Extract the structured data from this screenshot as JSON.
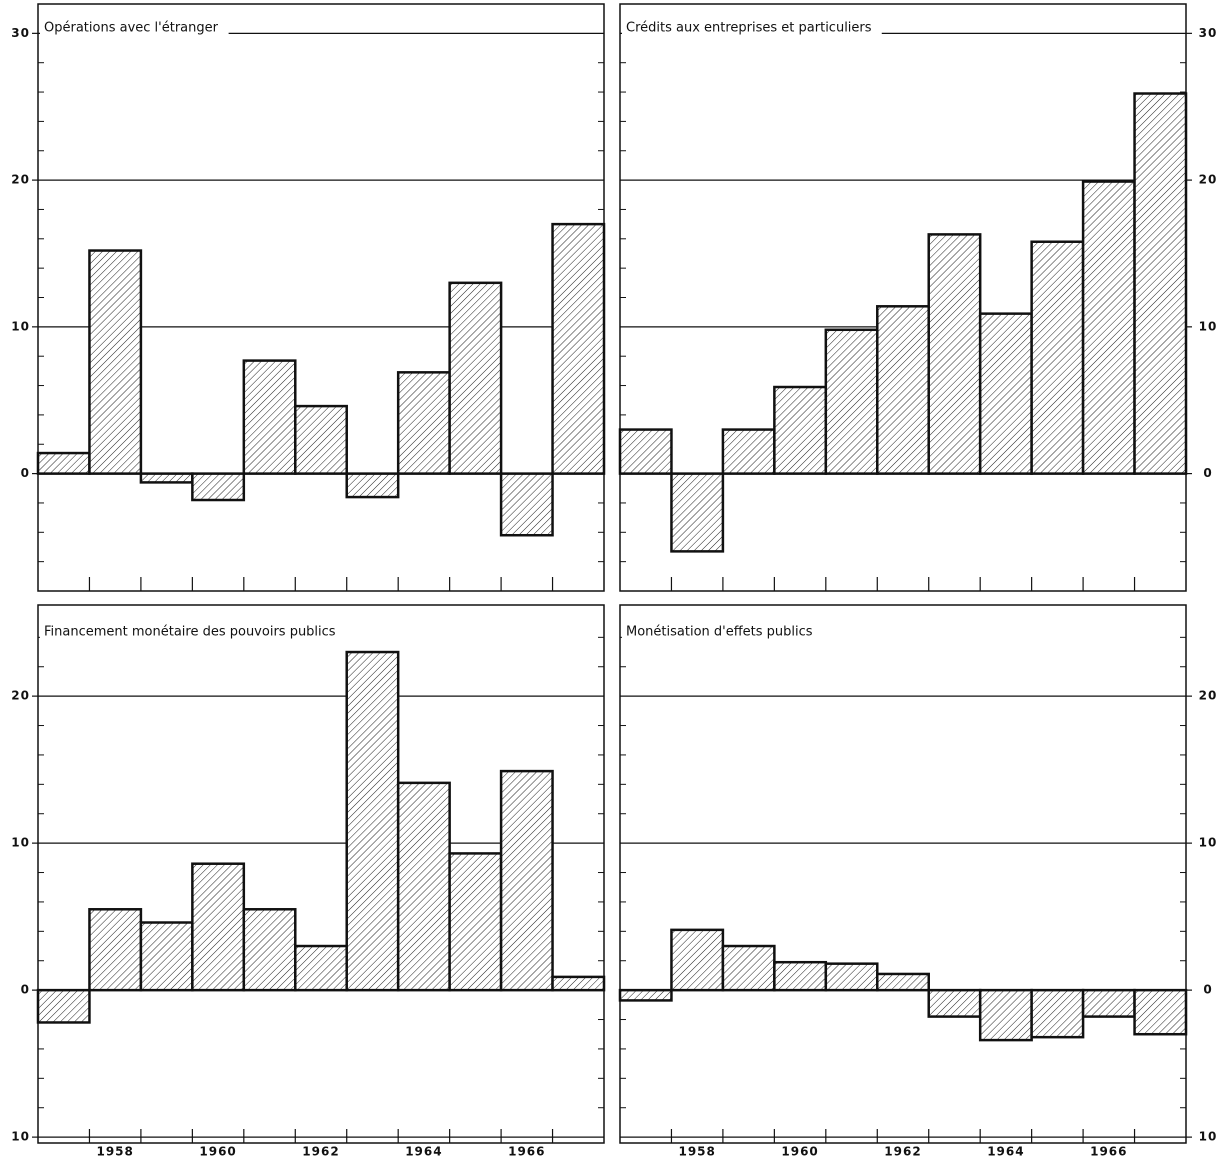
{
  "chart_data": [
    {
      "type": "bar",
      "title": "Opérations avec l'étranger",
      "color": "#111111",
      "categories": [
        null,
        null,
        null,
        null,
        null,
        null,
        null,
        null,
        null,
        null,
        null
      ],
      "values": [
        1.4,
        15.2,
        -0.6,
        -1.8,
        7.7,
        4.6,
        -1.6,
        6.9,
        13.0,
        -4.2,
        17.0
      ],
      "ylim": [
        -8,
        32
      ],
      "yticks": [
        0,
        10,
        20,
        30
      ],
      "minor_yticks": [
        -6,
        -4,
        -2,
        2,
        4,
        6,
        8,
        12,
        14,
        16,
        18,
        22,
        24,
        26,
        28
      ],
      "ytick_side": "left",
      "grid": true
    },
    {
      "type": "bar",
      "title": "Crédits aux entreprises et particuliers",
      "color": "#111111",
      "categories": [
        null,
        null,
        null,
        null,
        null,
        null,
        null,
        null,
        null,
        null,
        null
      ],
      "values": [
        3.0,
        -5.3,
        3.0,
        5.9,
        9.8,
        11.4,
        16.3,
        10.9,
        15.8,
        19.9,
        25.9
      ],
      "ylim": [
        -8,
        32
      ],
      "yticks": [
        0,
        10,
        20,
        30
      ],
      "minor_yticks": [
        -6,
        -4,
        -2,
        2,
        4,
        6,
        8,
        12,
        14,
        16,
        18,
        22,
        24,
        26,
        28
      ],
      "ytick_side": "right",
      "grid": true
    },
    {
      "type": "bar",
      "title": "Financement monétaire des pouvoirs publics",
      "color": "#111111",
      "categories": [
        null,
        "1958",
        null,
        "1960",
        null,
        "1962",
        null,
        "1964",
        null,
        "1966",
        null
      ],
      "values": [
        -2.2,
        5.5,
        4.6,
        8.6,
        5.5,
        3.0,
        23.0,
        14.1,
        9.3,
        14.9,
        0.9
      ],
      "ylim": [
        -10.4,
        26.2
      ],
      "yticks": [
        {
          "value": -10,
          "label": "10"
        },
        0,
        10,
        20
      ],
      "minor_yticks": [
        -8,
        -6,
        -4,
        -2,
        2,
        4,
        6,
        8,
        12,
        14,
        16,
        18,
        22,
        24
      ],
      "ytick_side": "left",
      "grid": true
    },
    {
      "type": "bar",
      "title": "Monétisation d'effets publics",
      "color": "#111111",
      "categories": [
        null,
        "1958",
        null,
        "1960",
        null,
        "1962",
        null,
        "1964",
        null,
        "1966",
        null
      ],
      "values": [
        -0.7,
        4.1,
        3.0,
        1.9,
        1.8,
        1.1,
        -1.8,
        -3.4,
        -3.2,
        -1.8,
        -3.0
      ],
      "ylim": [
        -10.4,
        26.2
      ],
      "yticks": [
        {
          "value": -10,
          "label": "10"
        },
        0,
        10,
        20
      ],
      "minor_yticks": [
        -8,
        -6,
        -4,
        -2,
        2,
        4,
        6,
        8,
        12,
        14,
        16,
        18,
        22,
        24
      ],
      "ytick_side": "right",
      "grid": true
    }
  ]
}
